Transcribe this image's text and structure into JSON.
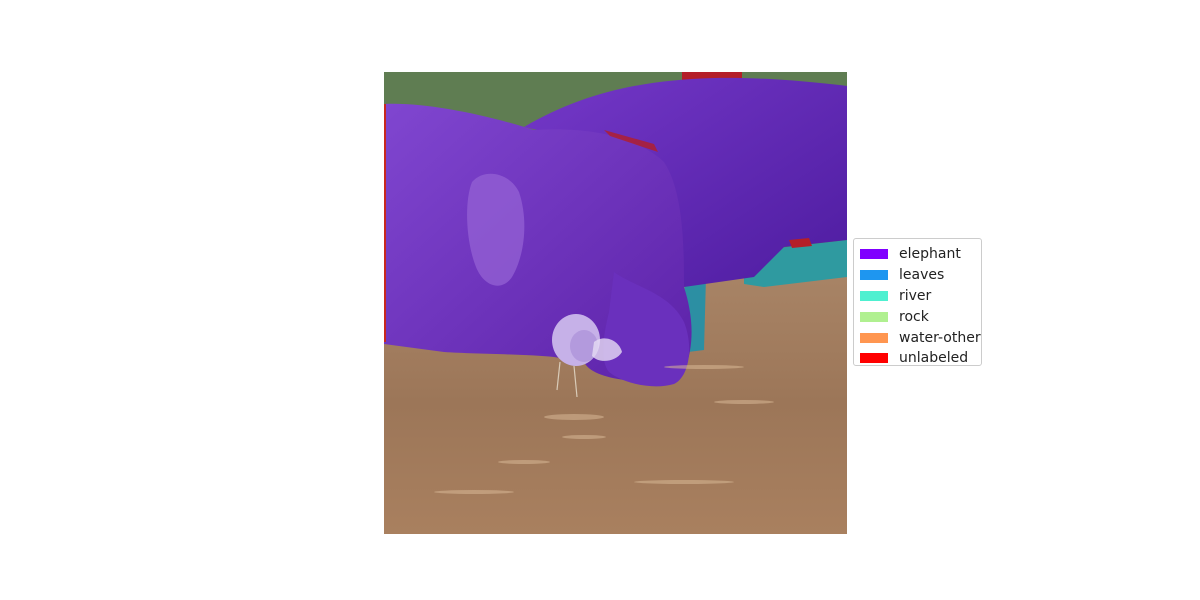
{
  "legend": {
    "items": [
      {
        "label": "elephant",
        "color": "#8000ff"
      },
      {
        "label": "leaves",
        "color": "#1e96f0"
      },
      {
        "label": "river",
        "color": "#4ef0d0"
      },
      {
        "label": "rock",
        "color": "#b0f090"
      },
      {
        "label": "water-other",
        "color": "#ff9650"
      },
      {
        "label": "unlabeled",
        "color": "#ff0000"
      }
    ]
  },
  "image": {
    "description_regions": [
      "foliage-top",
      "elephant-body",
      "river-water",
      "rock-region"
    ]
  },
  "colors": {
    "foliage": "#5f7d52",
    "elephant": "#7a3fc4",
    "water": "#a17b5c",
    "river_patch": "#3a9c9c",
    "unlabeled": "#c81e1e"
  }
}
